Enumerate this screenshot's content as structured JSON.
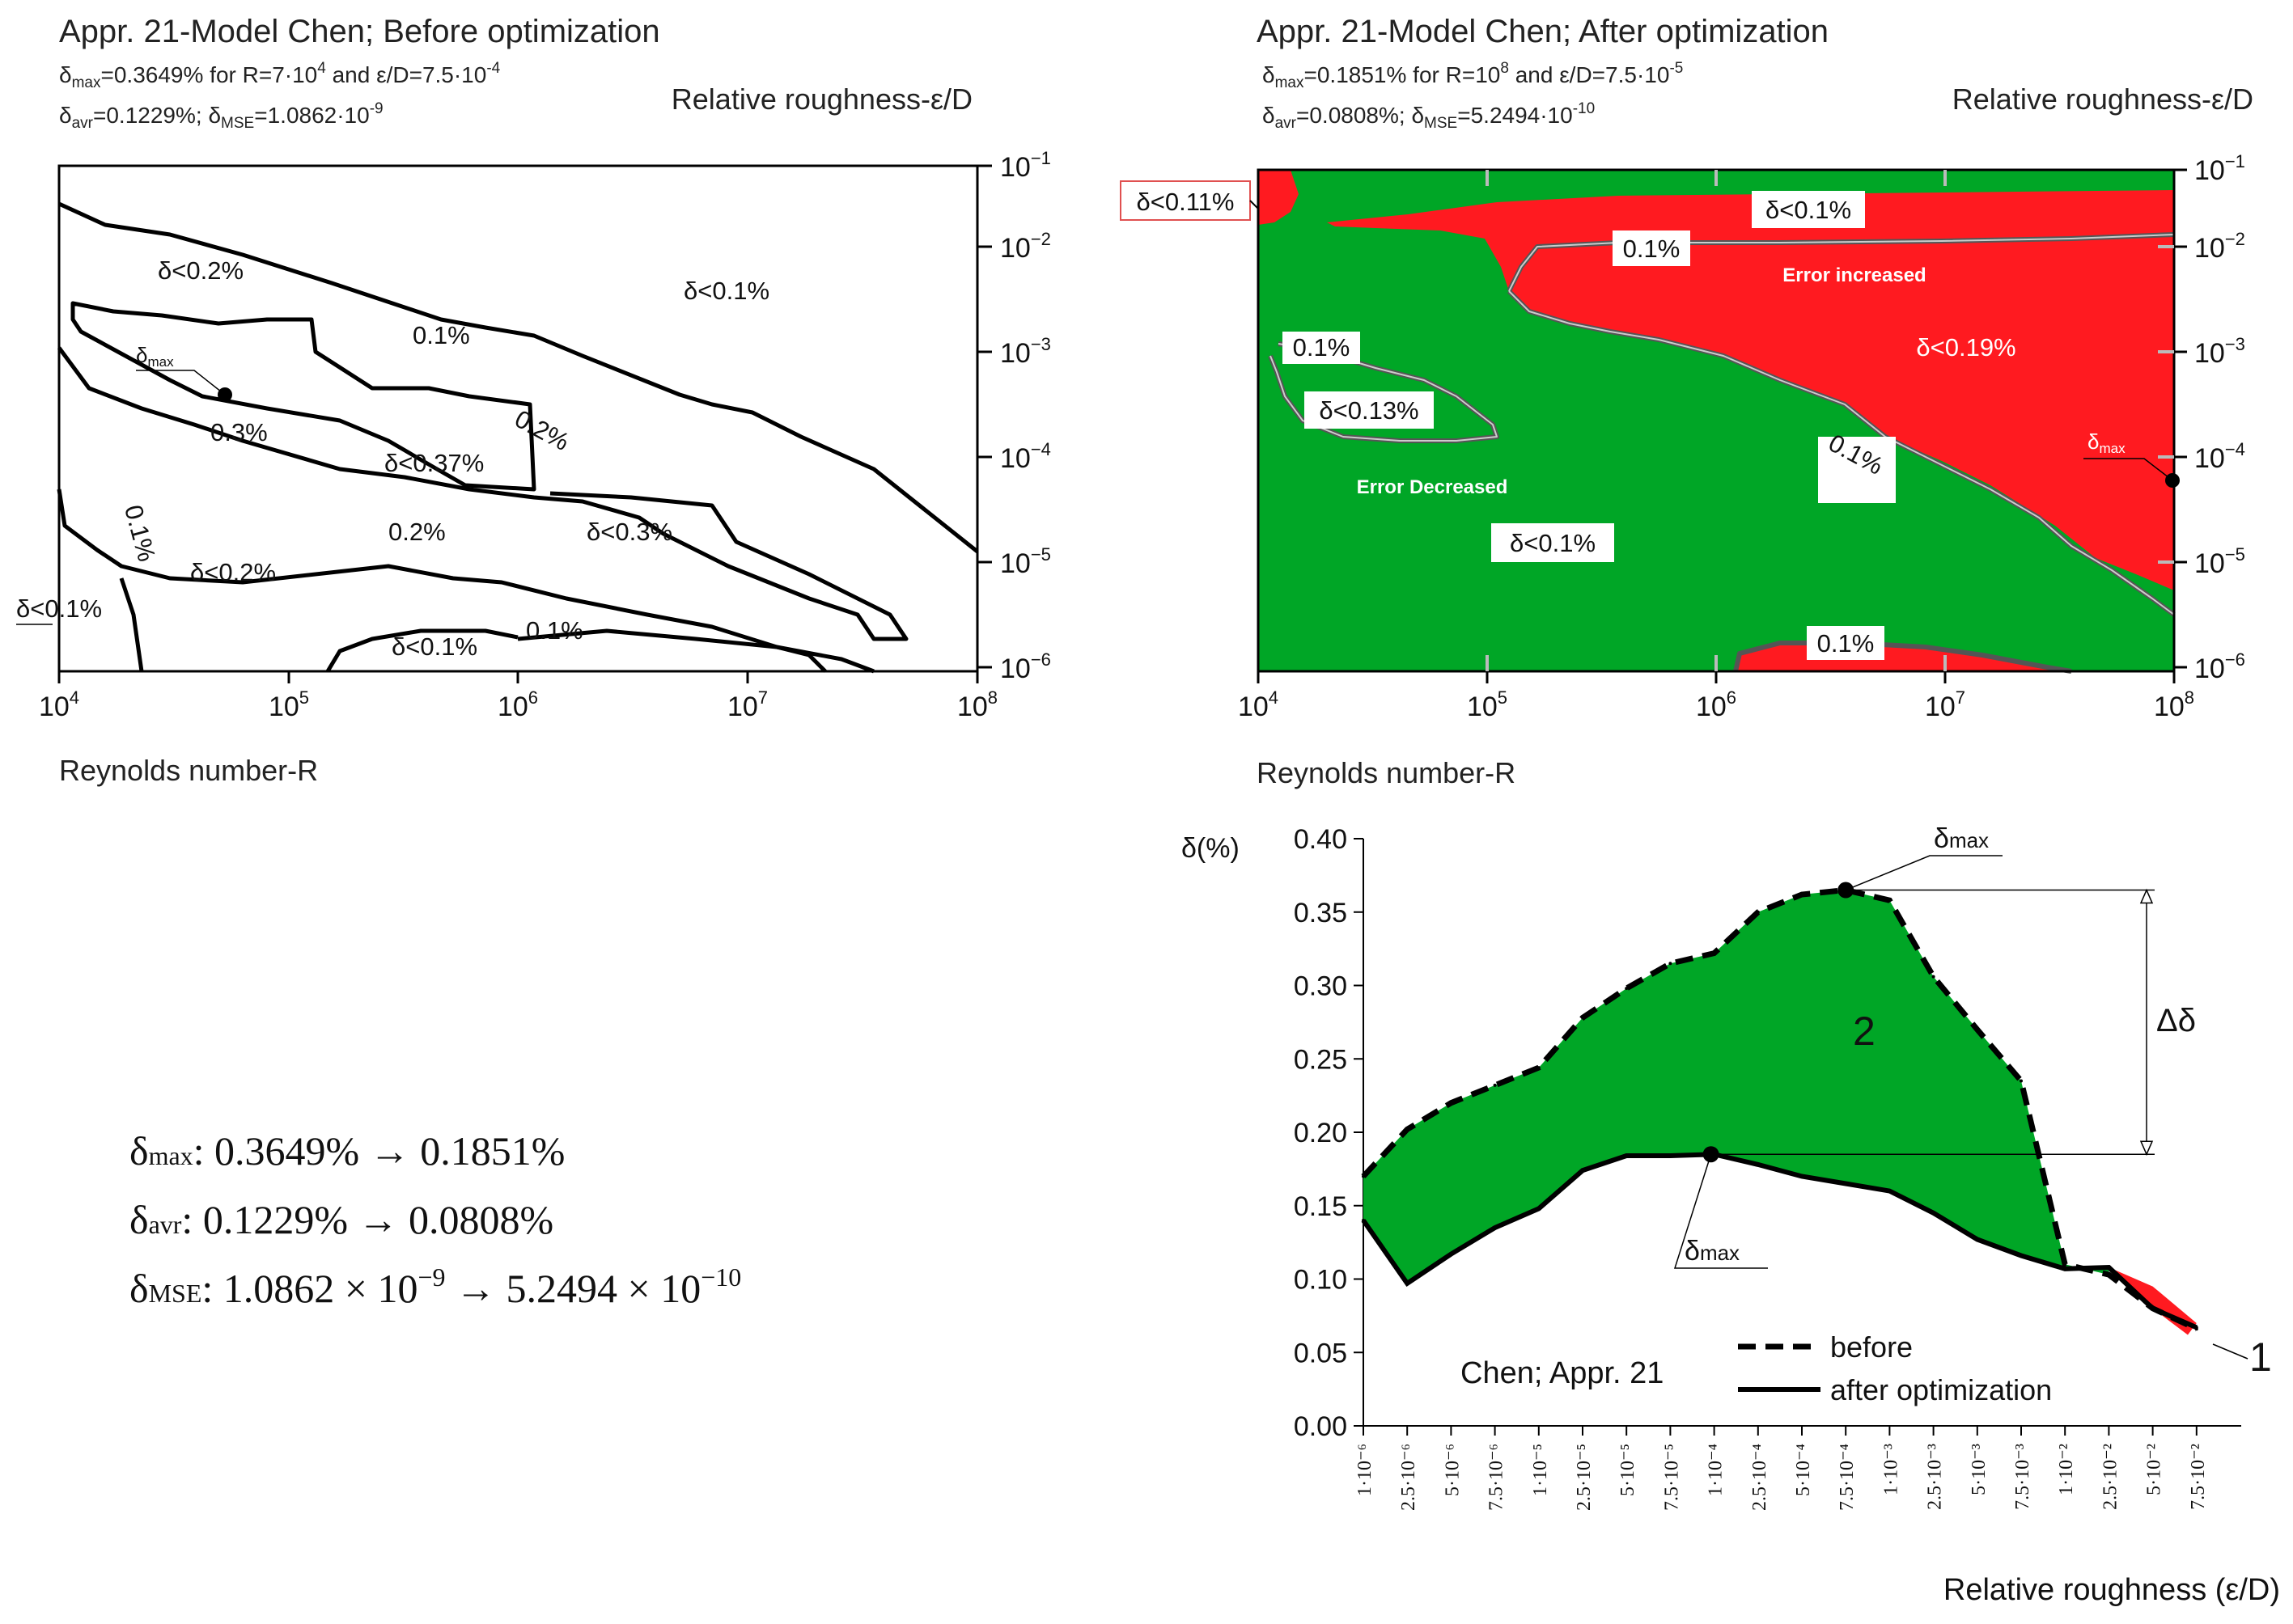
{
  "colors": {
    "green": "#00a626",
    "red": "#ff1a20",
    "ink": "#000000",
    "gray": "#555555"
  },
  "chart_data": [
    {
      "type": "contour",
      "title": "Appr. 21-Model Chen; Before optimization",
      "stats_max": {
        "prefix": "δ",
        "sub": "max",
        "text": "=0.3649% for R=7·10",
        "exp1": "4",
        "mid": " and ε/D=7.5·10",
        "exp2": "-4"
      },
      "stats_avr": {
        "sub1": "avr",
        "text1": "=0.1229%; δ",
        "sub2": "MSE",
        "text2": "=1.0862·10",
        "exp": "-9"
      },
      "right_title": "Relative roughness-ε/D",
      "xlabel": "Reynolds number-R",
      "x_ticks": [
        {
          "base": "10",
          "exp": "4"
        },
        {
          "base": "10",
          "exp": "5"
        },
        {
          "base": "10",
          "exp": "6"
        },
        {
          "base": "10",
          "exp": "7"
        },
        {
          "base": "10",
          "exp": "8"
        }
      ],
      "y_ticks": [
        {
          "base": "10",
          "exp": "−1"
        },
        {
          "base": "10",
          "exp": "−2"
        },
        {
          "base": "10",
          "exp": "−3"
        },
        {
          "base": "10",
          "exp": "−4"
        },
        {
          "base": "10",
          "exp": "−5"
        },
        {
          "base": "10",
          "exp": "−6"
        }
      ],
      "xlim": [
        10000,
        100000000
      ],
      "ylim": [
        1e-06,
        0.1
      ],
      "region_labels": [
        "δ<0.2%",
        "δ<0.1%",
        "δ<0.37%",
        "δ<0.3%",
        "δ<0.2%",
        "δ<0.1%",
        "δ<0.1%"
      ],
      "contour_labels": [
        "0.1%",
        "0.3%",
        "0.2%",
        "0.2%",
        "0.1%",
        "0.1%"
      ],
      "dmax_label": {
        "base": "δ",
        "sub": "max"
      }
    },
    {
      "type": "contour",
      "title": "Appr. 21-Model Chen; After optimization",
      "stats_max": {
        "prefix": "δ",
        "sub": "max",
        "text": "=0.1851% for R=10",
        "exp1": "8",
        "mid": " and ε/D=7.5·10",
        "exp2": "-5"
      },
      "stats_avr": {
        "sub1": "avr",
        "text1": "=0.0808%; δ",
        "sub2": "MSE",
        "text2": "=5.2494·10",
        "exp": "-10"
      },
      "right_title": "Relative roughness-ε/D",
      "xlabel": "Reynolds number-R",
      "x_ticks": [
        {
          "base": "10",
          "exp": "4"
        },
        {
          "base": "10",
          "exp": "5"
        },
        {
          "base": "10",
          "exp": "6"
        },
        {
          "base": "10",
          "exp": "7"
        },
        {
          "base": "10",
          "exp": "8"
        }
      ],
      "y_ticks": [
        {
          "base": "10",
          "exp": "−1"
        },
        {
          "base": "10",
          "exp": "−2"
        },
        {
          "base": "10",
          "exp": "−3"
        },
        {
          "base": "10",
          "exp": "−4"
        },
        {
          "base": "10",
          "exp": "−5"
        },
        {
          "base": "10",
          "exp": "−6"
        }
      ],
      "xlim": [
        10000,
        100000000
      ],
      "ylim": [
        1e-06,
        0.1
      ],
      "boxed_labels": [
        "δ<0.11%",
        "δ<0.1%",
        "0.1%",
        "0.1%",
        "δ<0.19%",
        "δ<0.13%",
        "0.1%",
        "δ<0.1%",
        "0.1%"
      ],
      "annotations": [
        "Error increased",
        "Error Decreased"
      ],
      "dmax_label": {
        "base": "δ",
        "sub": "max"
      }
    },
    {
      "type": "line",
      "title": "Chen; Appr. 21",
      "ylabel": "δ(%)",
      "xlabel": "Relative roughness (ε/D)",
      "ylim": [
        0,
        0.4
      ],
      "y_ticks": [
        "0.40",
        "0.35",
        "0.30",
        "0.25",
        "0.20",
        "0.15",
        "0.10",
        "0.05",
        "0.00"
      ],
      "categories": [
        "1·10⁻⁶",
        "2.5·10⁻⁶",
        "5·10⁻⁶",
        "7.5·10⁻⁶",
        "1·10⁻⁵",
        "2.5·10⁻⁵",
        "5·10⁻⁵",
        "7.5·10⁻⁵",
        "1·10⁻⁴",
        "2.5·10⁻⁴",
        "5·10⁻⁴",
        "7.5·10⁻⁴",
        "1·10⁻³",
        "2.5·10⁻³",
        "5·10⁻³",
        "7.5·10⁻³",
        "1·10⁻²",
        "2.5·10⁻²",
        "5·10⁻²",
        "7.5·10⁻²"
      ],
      "series": [
        {
          "name": "before",
          "style": "dashed",
          "values": [
            0.17,
            0.202,
            0.22,
            0.232,
            0.244,
            0.278,
            0.298,
            0.315,
            0.322,
            0.35,
            0.362,
            0.365,
            0.358,
            0.306,
            0.27,
            0.235,
            0.11,
            0.103,
            0.08,
            0.066
          ]
        },
        {
          "name": "after optimization",
          "style": "solid",
          "values": [
            0.14,
            0.097,
            0.117,
            0.135,
            0.148,
            0.174,
            0.184,
            0.184,
            0.185,
            0.178,
            0.17,
            0.165,
            0.16,
            0.145,
            0.127,
            0.116,
            0.107,
            0.108,
            0.08,
            0.067
          ]
        }
      ],
      "legend": [
        "before",
        "after optimization"
      ],
      "marker_labels": [
        "2",
        "1",
        "Δδ"
      ],
      "dmax_label": {
        "base": "δ",
        "sub": "max"
      }
    }
  ],
  "summary": [
    {
      "base": "δ",
      "sub": "max",
      "text": ": 0.3649% → 0.1851%"
    },
    {
      "base": "δ",
      "sub": "avr",
      "text": ": 0.1229% → 0.0808%"
    },
    {
      "base": "δ",
      "sub": "MSE",
      "pre": ": 1.0862 × 10",
      "exp1": "−9",
      "mid": " → 5.2494 × 10",
      "exp2": "−10"
    }
  ]
}
